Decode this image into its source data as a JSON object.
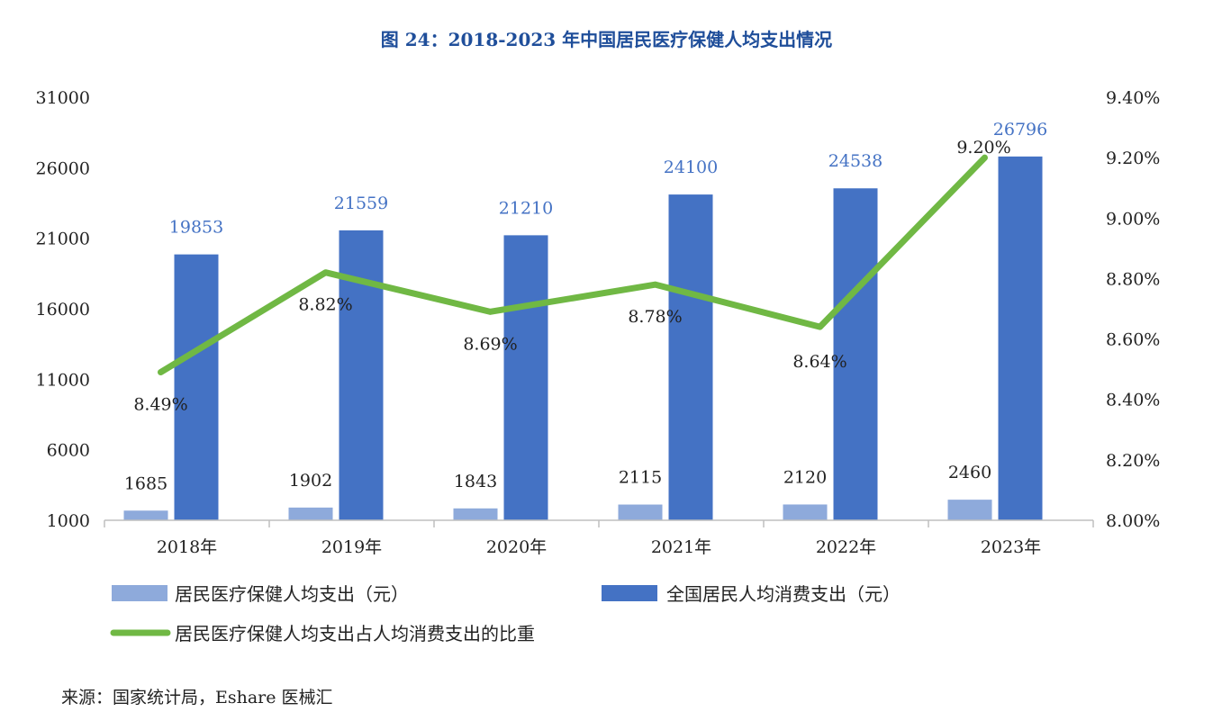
{
  "title": "图 24：2018-2023 年中国居民医疗保健人均支出情况",
  "source": "来源：国家统计局，Eshare 医械汇",
  "colors": {
    "health": "#8eaadb",
    "consumption": "#4472c4",
    "ratio": "#70b844",
    "title": "#1f4e9a"
  },
  "chart_data": {
    "type": "bar",
    "categories": [
      "2018年",
      "2019年",
      "2020年",
      "2021年",
      "2022年",
      "2023年"
    ],
    "series": [
      {
        "name": "居民医疗保健人均支出（元）",
        "type": "bar",
        "axis": "left",
        "values": [
          1685,
          1902,
          1843,
          2115,
          2120,
          2460
        ],
        "labels": [
          "1685",
          "1902",
          "1843",
          "2115",
          "2120",
          "2460"
        ]
      },
      {
        "name": "全国居民人均消费支出（元）",
        "type": "bar",
        "axis": "left",
        "values": [
          19853,
          21559,
          21210,
          24100,
          24538,
          26796
        ],
        "labels": [
          "19853",
          "21559",
          "21210",
          "24100",
          "24538",
          "26796"
        ]
      },
      {
        "name": "居民医疗保健人均支出占人均消费支出的比重",
        "type": "line",
        "axis": "right",
        "values": [
          8.49,
          8.82,
          8.69,
          8.78,
          8.64,
          9.2
        ],
        "labels": [
          "8.49%",
          "8.82%",
          "8.69%",
          "8.78%",
          "8.64%",
          "9.20%"
        ]
      }
    ],
    "left_axis": {
      "min": 1000,
      "max": 31000,
      "ticks": [
        "1000",
        "6000",
        "11000",
        "16000",
        "21000",
        "26000",
        "31000"
      ]
    },
    "right_axis": {
      "min": 8.0,
      "max": 9.4,
      "ticks": [
        "8.00%",
        "8.20%",
        "8.40%",
        "8.60%",
        "8.80%",
        "9.00%",
        "9.20%",
        "9.40%"
      ]
    },
    "grid": false,
    "legend_position": "bottom"
  }
}
